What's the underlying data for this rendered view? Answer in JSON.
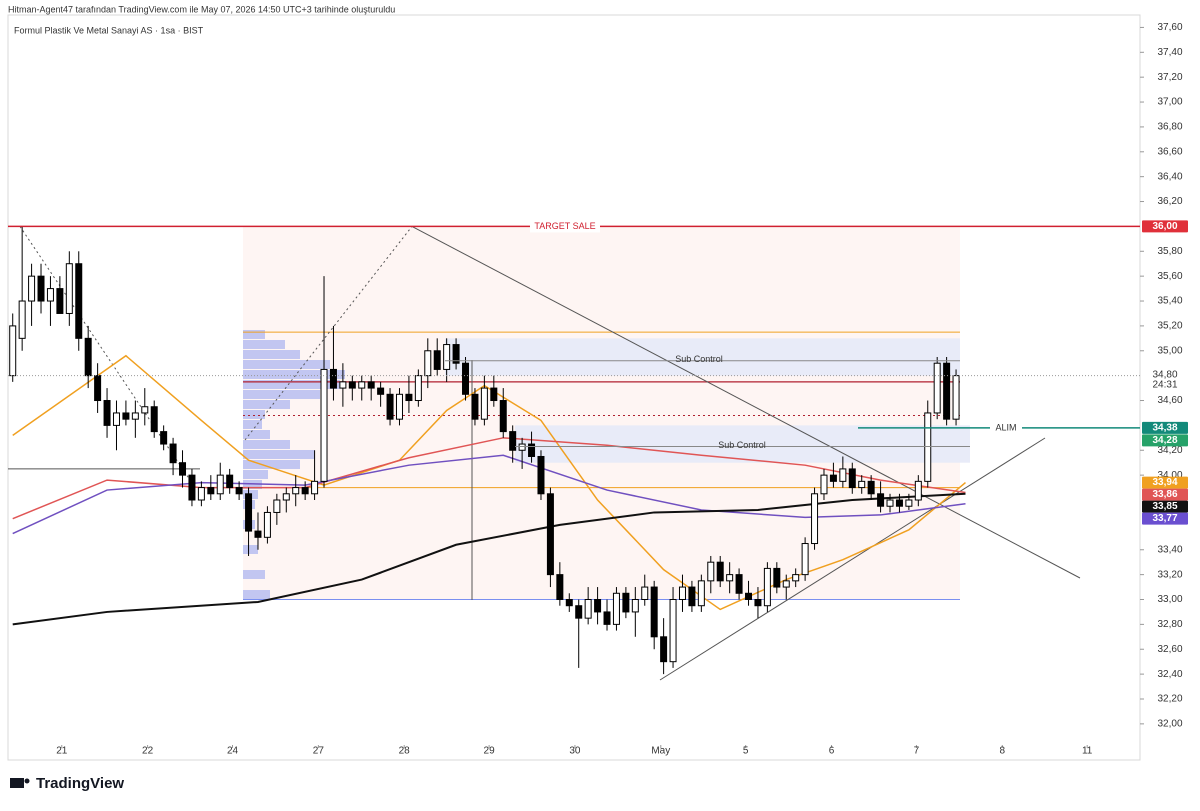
{
  "header": {
    "credit": "Hitman-Agent47 tarafından TradingView.com ile May 07, 2026 14:50 UTC+3 tarihinde oluşturuldu",
    "brand": "TradingView"
  },
  "chart_data": {
    "type": "candlestick",
    "title": "Formul Plastik Ve Metal Sanayi AS · 1sa · BIST",
    "up_color": "#ffffff",
    "down_color": "#000000",
    "xlim": [
      -0.5,
      119.5
    ],
    "xticks": [
      {
        "value": 5.2,
        "label": "21"
      },
      {
        "value": 14.3,
        "label": "22"
      },
      {
        "value": 23.3,
        "label": "24"
      },
      {
        "value": 32.4,
        "label": "27"
      },
      {
        "value": 41.5,
        "label": "28"
      },
      {
        "value": 50.5,
        "label": "29"
      },
      {
        "value": 59.6,
        "label": "30"
      },
      {
        "value": 68.7,
        "label": "May"
      },
      {
        "value": 77.7,
        "label": "5"
      },
      {
        "value": 86.8,
        "label": "6"
      },
      {
        "value": 95.8,
        "label": "7"
      },
      {
        "value": 104.9,
        "label": "8"
      },
      {
        "value": 113.9,
        "label": "11"
      }
    ],
    "ylim": [
      31.83,
      37.7
    ],
    "yticks": [
      {
        "value": 32.0,
        "label": "32,00"
      },
      {
        "value": 32.2,
        "label": "32,20"
      },
      {
        "value": 32.4,
        "label": "32,40"
      },
      {
        "value": 32.6,
        "label": "32,60"
      },
      {
        "value": 32.8,
        "label": "32,80"
      },
      {
        "value": 33.0,
        "label": "33,00"
      },
      {
        "value": 33.2,
        "label": "33,20"
      },
      {
        "value": 33.4,
        "label": "33,40"
      },
      {
        "value": 34.0,
        "label": "34,00"
      },
      {
        "value": 34.2,
        "label": "34,20"
      },
      {
        "value": 34.6,
        "label": "34,60"
      },
      {
        "value": 35.0,
        "label": "35,00"
      },
      {
        "value": 35.2,
        "label": "35,20"
      },
      {
        "value": 35.4,
        "label": "35,40"
      },
      {
        "value": 35.6,
        "label": "35,60"
      },
      {
        "value": 35.8,
        "label": "35,80"
      },
      {
        "value": 36.2,
        "label": "36,20"
      },
      {
        "value": 36.4,
        "label": "36,40"
      },
      {
        "value": 36.6,
        "label": "36,60"
      },
      {
        "value": 36.8,
        "label": "36,80"
      },
      {
        "value": 37.0,
        "label": "37,00"
      },
      {
        "value": 37.2,
        "label": "37,20"
      },
      {
        "value": 37.4,
        "label": "37,40"
      },
      {
        "value": 37.6,
        "label": "37,60"
      }
    ],
    "ohlc": [
      [
        34.8,
        35.3,
        34.75,
        35.2
      ],
      [
        35.1,
        36.0,
        35.0,
        35.4
      ],
      [
        35.4,
        35.7,
        35.2,
        35.6
      ],
      [
        35.6,
        35.7,
        35.3,
        35.4
      ],
      [
        35.4,
        35.6,
        35.2,
        35.5
      ],
      [
        35.5,
        35.6,
        35.3,
        35.3
      ],
      [
        35.3,
        35.8,
        35.2,
        35.7
      ],
      [
        35.7,
        35.8,
        35.0,
        35.1
      ],
      [
        35.1,
        35.2,
        34.7,
        34.8
      ],
      [
        34.8,
        34.9,
        34.5,
        34.6
      ],
      [
        34.6,
        34.7,
        34.3,
        34.4
      ],
      [
        34.4,
        34.6,
        34.2,
        34.5
      ],
      [
        34.5,
        34.6,
        34.4,
        34.45
      ],
      [
        34.45,
        34.6,
        34.3,
        34.5
      ],
      [
        34.5,
        34.7,
        34.4,
        34.55
      ],
      [
        34.55,
        34.6,
        34.3,
        34.35
      ],
      [
        34.35,
        34.4,
        34.2,
        34.25
      ],
      [
        34.25,
        34.3,
        34.0,
        34.1
      ],
      [
        34.1,
        34.2,
        33.9,
        34.0
      ],
      [
        34.0,
        34.05,
        33.75,
        33.8
      ],
      [
        33.8,
        33.95,
        33.75,
        33.9
      ],
      [
        33.9,
        34.0,
        33.8,
        33.85
      ],
      [
        33.85,
        34.1,
        33.8,
        34.0
      ],
      [
        34.0,
        34.05,
        33.85,
        33.9
      ],
      [
        33.9,
        33.95,
        33.8,
        33.85
      ],
      [
        33.85,
        33.9,
        33.35,
        33.55
      ],
      [
        33.55,
        33.7,
        33.4,
        33.5
      ],
      [
        33.5,
        33.75,
        33.45,
        33.7
      ],
      [
        33.7,
        33.85,
        33.6,
        33.8
      ],
      [
        33.8,
        33.9,
        33.7,
        33.85
      ],
      [
        33.85,
        34.0,
        33.75,
        33.9
      ],
      [
        33.9,
        33.95,
        33.8,
        33.85
      ],
      [
        33.85,
        34.2,
        33.8,
        33.95
      ],
      [
        33.95,
        35.6,
        33.9,
        34.85
      ],
      [
        34.85,
        35.2,
        34.6,
        34.7
      ],
      [
        34.7,
        34.9,
        34.55,
        34.75
      ],
      [
        34.75,
        34.8,
        34.6,
        34.7
      ],
      [
        34.7,
        34.8,
        34.6,
        34.75
      ],
      [
        34.75,
        34.8,
        34.6,
        34.7
      ],
      [
        34.7,
        34.75,
        34.55,
        34.65
      ],
      [
        34.65,
        34.7,
        34.4,
        34.45
      ],
      [
        34.45,
        34.7,
        34.4,
        34.65
      ],
      [
        34.65,
        34.8,
        34.5,
        34.6
      ],
      [
        34.6,
        34.85,
        34.55,
        34.8
      ],
      [
        34.8,
        35.1,
        34.7,
        35.0
      ],
      [
        35.0,
        35.1,
        34.8,
        34.85
      ],
      [
        34.85,
        35.1,
        34.75,
        35.05
      ],
      [
        35.05,
        35.1,
        34.85,
        34.9
      ],
      [
        34.9,
        34.95,
        34.6,
        34.65
      ],
      [
        34.65,
        34.7,
        34.4,
        34.45
      ],
      [
        34.45,
        34.8,
        34.4,
        34.7
      ],
      [
        34.7,
        34.8,
        34.55,
        34.6
      ],
      [
        34.6,
        34.7,
        34.3,
        34.35
      ],
      [
        34.35,
        34.4,
        34.1,
        34.2
      ],
      [
        34.2,
        34.3,
        34.05,
        34.25
      ],
      [
        34.25,
        34.35,
        34.1,
        34.15
      ],
      [
        34.15,
        34.2,
        33.8,
        33.85
      ],
      [
        33.85,
        33.9,
        33.1,
        33.2
      ],
      [
        33.2,
        33.3,
        32.95,
        33.0
      ],
      [
        33.0,
        33.05,
        32.9,
        32.95
      ],
      [
        32.95,
        33.0,
        32.45,
        32.85
      ],
      [
        32.85,
        33.1,
        32.8,
        33.0
      ],
      [
        33.0,
        33.1,
        32.8,
        32.9
      ],
      [
        32.9,
        33.0,
        32.75,
        32.8
      ],
      [
        32.8,
        33.1,
        32.75,
        33.05
      ],
      [
        33.05,
        33.1,
        32.85,
        32.9
      ],
      [
        32.9,
        33.1,
        32.7,
        33.0
      ],
      [
        33.0,
        33.2,
        32.95,
        33.1
      ],
      [
        33.1,
        33.15,
        32.6,
        32.7
      ],
      [
        32.7,
        32.85,
        32.4,
        32.5
      ],
      [
        32.5,
        33.1,
        32.45,
        33.0
      ],
      [
        33.0,
        33.2,
        32.9,
        33.1
      ],
      [
        33.1,
        33.15,
        32.9,
        32.95
      ],
      [
        32.95,
        33.2,
        32.9,
        33.15
      ],
      [
        33.15,
        33.35,
        33.05,
        33.3
      ],
      [
        33.3,
        33.35,
        33.1,
        33.15
      ],
      [
        33.15,
        33.3,
        33.05,
        33.2
      ],
      [
        33.2,
        33.25,
        33.0,
        33.05
      ],
      [
        33.05,
        33.15,
        32.95,
        33.0
      ],
      [
        33.0,
        33.1,
        32.85,
        32.95
      ],
      [
        32.95,
        33.3,
        32.9,
        33.25
      ],
      [
        33.25,
        33.3,
        33.05,
        33.1
      ],
      [
        33.1,
        33.2,
        33.0,
        33.15
      ],
      [
        33.15,
        33.25,
        33.1,
        33.2
      ],
      [
        33.2,
        33.5,
        33.15,
        33.45
      ],
      [
        33.45,
        33.9,
        33.4,
        33.85
      ],
      [
        33.85,
        34.05,
        33.8,
        34.0
      ],
      [
        34.0,
        34.1,
        33.9,
        33.95
      ],
      [
        33.95,
        34.15,
        33.9,
        34.05
      ],
      [
        34.05,
        34.1,
        33.85,
        33.9
      ],
      [
        33.9,
        34.0,
        33.85,
        33.95
      ],
      [
        33.95,
        34.0,
        33.8,
        33.85
      ],
      [
        33.85,
        33.95,
        33.7,
        33.75
      ],
      [
        33.75,
        33.85,
        33.7,
        33.8
      ],
      [
        33.8,
        33.85,
        33.7,
        33.75
      ],
      [
        33.75,
        33.85,
        33.72,
        33.8
      ],
      [
        33.8,
        34.0,
        33.75,
        33.95
      ],
      [
        33.95,
        34.6,
        33.9,
        34.5
      ],
      [
        34.5,
        34.95,
        34.45,
        34.9
      ],
      [
        34.9,
        34.95,
        34.4,
        34.45
      ],
      [
        34.45,
        34.85,
        34.4,
        34.8
      ]
    ],
    "lines": [
      {
        "color": "#f0a020",
        "x": [
          0,
          12,
          20,
          25,
          33,
          41,
          46,
          50,
          56,
          62,
          69,
          75,
          82,
          88,
          95,
          101
        ],
        "values": [
          34.32,
          34.96,
          34.44,
          34.12,
          33.92,
          34.12,
          34.52,
          34.72,
          34.44,
          33.8,
          33.24,
          32.92,
          33.16,
          33.32,
          33.56,
          33.94
        ]
      },
      {
        "color": "#e05555",
        "x": [
          0,
          10,
          20,
          31,
          42,
          52,
          63,
          73,
          84,
          92,
          101
        ],
        "values": [
          33.65,
          33.96,
          33.9,
          33.9,
          34.14,
          34.3,
          34.24,
          34.16,
          34.08,
          33.96,
          33.86
        ]
      },
      {
        "color": "#7050c0",
        "x": [
          0,
          10,
          20,
          31,
          42,
          52,
          63,
          73,
          84,
          92,
          101
        ],
        "values": [
          33.53,
          33.88,
          33.94,
          33.92,
          34.08,
          34.16,
          33.88,
          33.72,
          33.66,
          33.68,
          33.77
        ]
      },
      {
        "color": "#111111",
        "x": [
          0,
          10,
          26,
          37,
          47,
          58,
          68,
          79,
          89,
          101
        ],
        "values": [
          32.8,
          32.9,
          32.98,
          33.16,
          33.44,
          33.6,
          33.7,
          33.72,
          33.8,
          33.85
        ]
      }
    ],
    "price_labels": [
      {
        "value": 36.0,
        "label": "36,00",
        "color": "#e0303a"
      },
      {
        "value": 34.38,
        "label": "34,38",
        "color": "#138a7a"
      },
      {
        "value": 34.28,
        "label": "34,28",
        "color": "#26a269"
      },
      {
        "value": 33.94,
        "label": "33,94",
        "color": "#f0a020"
      },
      {
        "value": 33.86,
        "label": "33,86",
        "color": "#e05555"
      },
      {
        "value": 33.85,
        "label": "33,85",
        "color": "#111111"
      },
      {
        "value": 33.77,
        "label": "33,77",
        "color": "#6a4fd0"
      }
    ],
    "current_price": {
      "value": 34.8,
      "label": "34,80",
      "countdown": "24:31"
    },
    "annotations": [
      {
        "text": "TARGET SALE",
        "value": 36.0
      },
      {
        "text": "Sub Control",
        "value": 34.92
      },
      {
        "text": "Sub Control",
        "value": 34.23
      },
      {
        "text": "ALIM",
        "value": 34.38
      }
    ]
  }
}
